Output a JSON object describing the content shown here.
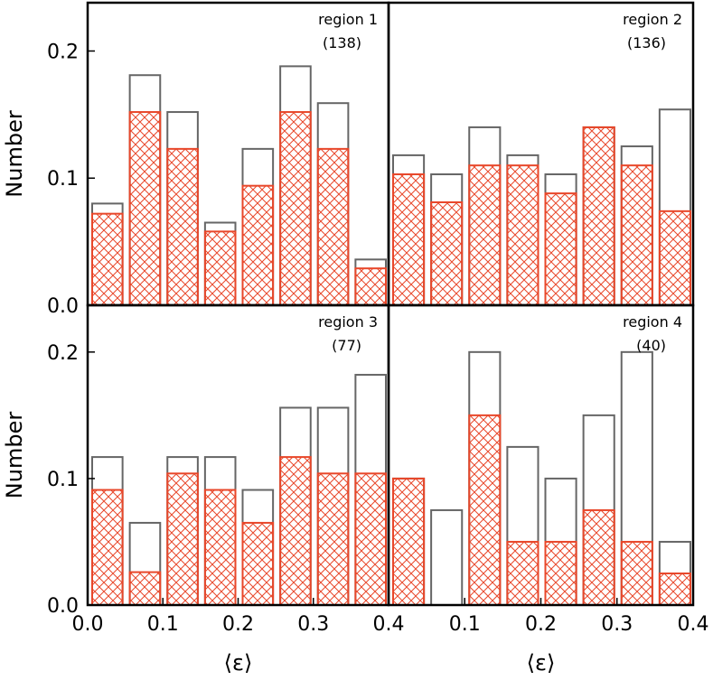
{
  "chart_data": [
    {
      "type": "histogram",
      "annotations": [
        "region 1",
        "(138)"
      ],
      "ylabel": "Number",
      "bins": [
        0,
        0.05,
        0.1,
        0.15,
        0.2,
        0.25,
        0.3,
        0.35,
        0.4
      ],
      "series": [
        {
          "color": "#666666",
          "values": [
            0.08,
            0.181,
            0.152,
            0.065,
            0.123,
            0.188,
            0.159,
            0.036
          ]
        },
        {
          "color": "#e8472a",
          "values": [
            0.072,
            0.152,
            0.123,
            0.058,
            0.094,
            0.152,
            0.123,
            0.029
          ]
        }
      ],
      "xlim": [
        0,
        0.4
      ],
      "ylim": [
        0,
        0.238
      ],
      "yticks": [
        {
          "value": 0,
          "label": "0.0"
        },
        0.1,
        0.2
      ]
    },
    {
      "type": "histogram",
      "annotations": [
        "region 2",
        "(136)"
      ],
      "bins": [
        0,
        0.05,
        0.1,
        0.15,
        0.2,
        0.25,
        0.3,
        0.35,
        0.4
      ],
      "series": [
        {
          "color": "#666666",
          "values": [
            0.118,
            0.103,
            0.14,
            0.118,
            0.103,
            0.14,
            0.125,
            0.154
          ]
        },
        {
          "color": "#e8472a",
          "values": [
            0.103,
            0.081,
            0.11,
            0.11,
            0.088,
            0.14,
            0.11,
            0.074
          ]
        }
      ],
      "xlim": [
        0,
        0.4
      ],
      "ylim": [
        0,
        0.238
      ]
    },
    {
      "type": "histogram",
      "annotations": [
        "region 3",
        "(77)"
      ],
      "ylabel": "Number",
      "xlabel": "⟨ε⟩",
      "bins": [
        0,
        0.05,
        0.1,
        0.15,
        0.2,
        0.25,
        0.3,
        0.35,
        0.4
      ],
      "series": [
        {
          "color": "#666666",
          "values": [
            0.117,
            0.065,
            0.117,
            0.117,
            0.091,
            0.156,
            0.156,
            0.182
          ]
        },
        {
          "color": "#e8472a",
          "values": [
            0.091,
            0.026,
            0.104,
            0.091,
            0.065,
            0.117,
            0.104,
            0.104
          ]
        }
      ],
      "xlim": [
        0,
        0.4
      ],
      "ylim": [
        0,
        0.237
      ],
      "xticks": [
        {
          "value": 0,
          "label": "0.0"
        },
        0.1,
        0.2,
        0.3,
        0.4
      ],
      "yticks": [
        {
          "value": 0,
          "label": "0.0"
        },
        0.1,
        0.2
      ]
    },
    {
      "type": "histogram",
      "annotations": [
        "region 4",
        "(40)"
      ],
      "xlabel": "⟨ε⟩",
      "bins": [
        0,
        0.05,
        0.1,
        0.15,
        0.2,
        0.25,
        0.3,
        0.35,
        0.4
      ],
      "series": [
        {
          "color": "#666666",
          "values": [
            0.1,
            0.075,
            0.2,
            0.125,
            0.1,
            0.15,
            0.2,
            0.05
          ]
        },
        {
          "color": "#e8472a",
          "values": [
            0.1,
            0,
            0.15,
            0.05,
            0.05,
            0.075,
            0.05,
            0.025
          ]
        }
      ],
      "xlim": [
        0,
        0.4
      ],
      "ylim": [
        0,
        0.237
      ],
      "xticks": [
        0.1,
        0.2,
        0.3,
        0.4
      ]
    }
  ]
}
